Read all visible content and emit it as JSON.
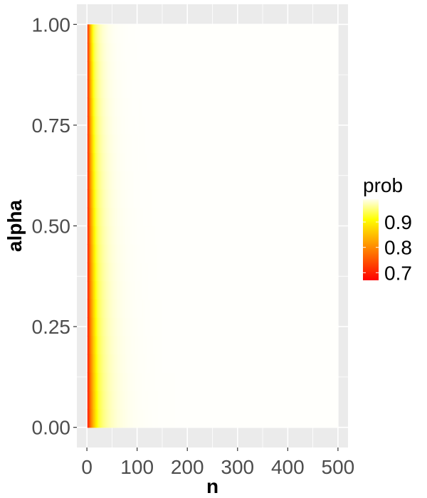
{
  "chart_data": {
    "type": "heatmap",
    "title": "",
    "xlabel": "n",
    "ylabel": "alpha",
    "xlim": [
      -20,
      520
    ],
    "ylim": [
      -0.05,
      1.05
    ],
    "x_data_range": [
      1,
      500
    ],
    "y_data_range": [
      0,
      1
    ],
    "x_ticks": [
      0,
      100,
      200,
      300,
      400,
      500
    ],
    "x_tick_labels": [
      "0",
      "100",
      "200",
      "300",
      "400",
      "500"
    ],
    "y_ticks": [
      0,
      0.25,
      0.5,
      0.75,
      1.0
    ],
    "y_tick_labels": [
      "0.00",
      "0.25",
      "0.50",
      "0.75",
      "1.00"
    ],
    "fill_variable": "prob",
    "fill_range": [
      0.67,
      0.99
    ],
    "color_scale": {
      "low": "#ff0000",
      "mid": "#ffff00",
      "high": "#ffffff"
    },
    "legend": {
      "title": "prob",
      "position": "right",
      "breaks": [
        0.7,
        0.8,
        0.9
      ],
      "labels": [
        "0.7",
        "0.8",
        "0.9"
      ]
    },
    "grid": true,
    "panel_background": "#ebebeb",
    "grid_color": "#ffffff",
    "observations": "prob rises quickly with n: about 0.67 near n = 0, about 0.9 by n ≈ 30–50, near 1 beyond n ≈ 100; contours tilt toward larger n as alpha approaches 1"
  }
}
